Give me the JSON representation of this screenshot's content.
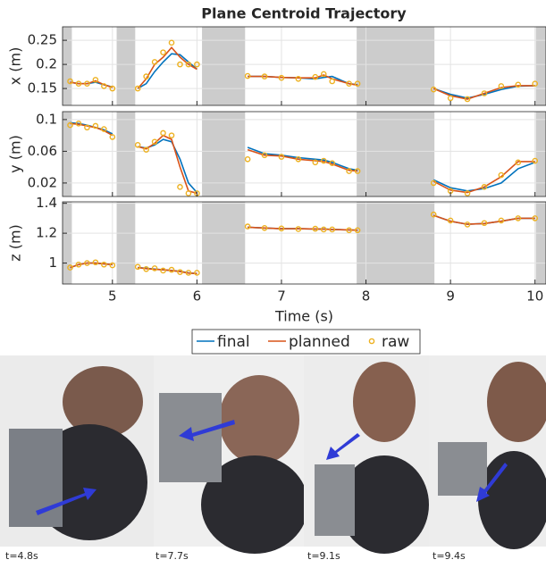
{
  "chart_data": [
    {
      "type": "line",
      "title": "Plane Centroid Trajectory",
      "ylabel": "x (m)",
      "x": [
        4.5,
        4.6,
        4.7,
        4.8,
        4.9,
        5.0,
        5.15,
        5.3,
        5.4,
        5.5,
        5.6,
        5.7,
        5.8,
        5.9,
        6.0,
        6.3,
        6.6,
        6.8,
        7.0,
        7.2,
        7.4,
        7.5,
        7.6,
        7.8,
        7.9,
        8.3,
        8.8,
        9.0,
        9.2,
        9.4,
        9.6,
        9.8,
        10.0
      ],
      "series": [
        {
          "name": "final",
          "color": "#0072bd",
          "style": "line",
          "values": [
            0.163,
            0.16,
            0.16,
            0.163,
            0.158,
            0.153,
            null,
            0.15,
            0.16,
            0.185,
            0.205,
            0.222,
            0.22,
            0.205,
            0.19,
            null,
            0.175,
            0.175,
            0.173,
            0.172,
            0.17,
            0.173,
            0.175,
            0.16,
            0.158,
            null,
            0.15,
            0.138,
            0.13,
            0.138,
            0.148,
            0.155,
            0.156
          ]
        },
        {
          "name": "planned",
          "color": "#d95319",
          "style": "line",
          "values": [
            0.163,
            0.16,
            0.16,
            0.166,
            0.158,
            0.152,
            null,
            0.15,
            0.17,
            0.2,
            0.215,
            0.235,
            0.215,
            0.2,
            0.19,
            null,
            0.175,
            0.175,
            0.173,
            0.172,
            0.172,
            0.178,
            0.17,
            0.16,
            0.157,
            null,
            0.15,
            0.135,
            0.128,
            0.14,
            0.152,
            0.156,
            0.156
          ]
        },
        {
          "name": "raw",
          "color": "#edb120",
          "style": "marker",
          "values": [
            0.165,
            0.16,
            0.16,
            0.168,
            0.155,
            0.15,
            null,
            0.15,
            0.175,
            0.205,
            0.225,
            0.245,
            0.2,
            0.2,
            0.2,
            null,
            0.176,
            0.175,
            0.172,
            0.17,
            0.174,
            0.18,
            0.165,
            0.16,
            0.16,
            null,
            0.148,
            0.13,
            0.128,
            0.14,
            0.155,
            0.158,
            0.16
          ]
        }
      ],
      "shaded": [
        [
          4.41,
          4.52
        ],
        [
          5.05,
          5.27
        ],
        [
          6.06,
          6.57
        ],
        [
          7.89,
          8.81
        ],
        [
          10.01,
          10.13
        ]
      ],
      "xlim": [
        4.41,
        10.13
      ],
      "xticks": [
        5,
        6,
        7,
        8,
        9,
        10
      ],
      "ylim": [
        0.115,
        0.278
      ],
      "yticks": [
        0.15,
        0.2,
        0.25
      ],
      "grid": true
    },
    {
      "type": "line",
      "ylabel": "y (m)",
      "x": [
        4.5,
        4.6,
        4.7,
        4.8,
        4.9,
        5.0,
        5.15,
        5.3,
        5.4,
        5.5,
        5.6,
        5.7,
        5.8,
        5.9,
        6.0,
        6.3,
        6.6,
        6.8,
        7.0,
        7.2,
        7.4,
        7.5,
        7.6,
        7.8,
        7.9,
        8.3,
        8.8,
        9.0,
        9.2,
        9.4,
        9.6,
        9.8,
        10.0
      ],
      "series": [
        {
          "name": "final",
          "color": "#0072bd",
          "style": "line",
          "values": [
            0.096,
            0.095,
            0.093,
            0.09,
            0.087,
            0.082,
            null,
            0.066,
            0.064,
            0.068,
            0.075,
            0.072,
            0.05,
            0.02,
            0.008,
            null,
            0.065,
            0.057,
            0.055,
            0.052,
            0.05,
            0.049,
            0.046,
            0.038,
            0.036,
            null,
            0.024,
            0.014,
            0.01,
            0.013,
            0.02,
            0.038,
            0.046
          ]
        },
        {
          "name": "planned",
          "color": "#d95319",
          "style": "line",
          "values": [
            0.095,
            0.094,
            0.092,
            0.09,
            0.086,
            0.08,
            null,
            0.066,
            0.063,
            0.07,
            0.08,
            0.075,
            0.04,
            0.01,
            0.007,
            null,
            0.062,
            0.055,
            0.054,
            0.05,
            0.048,
            0.047,
            0.044,
            0.036,
            0.035,
            null,
            0.022,
            0.011,
            0.008,
            0.015,
            0.028,
            0.047,
            0.047
          ]
        },
        {
          "name": "raw",
          "color": "#edb120",
          "style": "marker",
          "values": [
            0.093,
            0.095,
            0.09,
            0.092,
            0.088,
            0.078,
            null,
            0.068,
            0.062,
            0.072,
            0.083,
            0.08,
            0.015,
            0.007,
            0.007,
            null,
            0.05,
            0.055,
            0.053,
            0.05,
            0.046,
            0.048,
            0.045,
            0.035,
            0.035,
            null,
            0.02,
            0.01,
            0.007,
            0.015,
            0.03,
            0.046,
            0.048
          ]
        }
      ],
      "shaded": [
        [
          4.41,
          4.52
        ],
        [
          5.05,
          5.27
        ],
        [
          6.06,
          6.57
        ],
        [
          7.89,
          8.81
        ],
        [
          10.01,
          10.13
        ]
      ],
      "xlim": [
        4.41,
        10.13
      ],
      "xticks": [
        5,
        6,
        7,
        8,
        9,
        10
      ],
      "ylim": [
        0.003,
        0.11
      ],
      "yticks": [
        0.02,
        0.06,
        0.1
      ],
      "grid": true
    },
    {
      "type": "line",
      "ylabel": "z (m)",
      "xlabel": "Time (s)",
      "x": [
        4.5,
        4.6,
        4.7,
        4.8,
        4.9,
        5.0,
        5.15,
        5.3,
        5.4,
        5.5,
        5.6,
        5.7,
        5.8,
        5.9,
        6.0,
        6.3,
        6.6,
        6.8,
        7.0,
        7.2,
        7.4,
        7.5,
        7.6,
        7.8,
        7.9,
        8.3,
        8.8,
        9.0,
        9.2,
        9.4,
        9.6,
        9.8,
        10.0
      ],
      "series": [
        {
          "name": "final",
          "color": "#0072bd",
          "style": "line",
          "values": [
            0.97,
            0.99,
            1.0,
            1.0,
            0.995,
            0.99,
            null,
            0.97,
            0.965,
            0.96,
            0.955,
            0.95,
            0.945,
            0.935,
            0.93,
            null,
            1.24,
            1.235,
            1.23,
            1.23,
            1.228,
            1.228,
            1.225,
            1.222,
            1.22,
            null,
            1.32,
            1.28,
            1.26,
            1.265,
            1.28,
            1.3,
            1.3
          ]
        },
        {
          "name": "planned",
          "color": "#d95319",
          "style": "line",
          "values": [
            0.97,
            0.99,
            1.0,
            1.0,
            0.995,
            0.99,
            null,
            0.97,
            0.963,
            0.958,
            0.955,
            0.95,
            0.943,
            0.933,
            0.93,
            null,
            1.24,
            1.235,
            1.23,
            1.23,
            1.228,
            1.227,
            1.225,
            1.222,
            1.22,
            null,
            1.32,
            1.28,
            1.26,
            1.265,
            1.28,
            1.3,
            1.3
          ]
        },
        {
          "name": "raw",
          "color": "#edb120",
          "style": "marker",
          "values": [
            0.97,
            0.99,
            1.0,
            1.005,
            0.99,
            0.985,
            null,
            0.975,
            0.96,
            0.965,
            0.95,
            0.955,
            0.94,
            0.935,
            0.935,
            null,
            1.245,
            1.235,
            1.232,
            1.228,
            1.23,
            1.225,
            1.225,
            1.22,
            1.22,
            null,
            1.325,
            1.285,
            1.258,
            1.268,
            1.285,
            1.3,
            1.3
          ]
        }
      ],
      "shaded": [
        [
          4.41,
          4.52
        ],
        [
          5.05,
          5.27
        ],
        [
          6.06,
          6.57
        ],
        [
          7.89,
          8.81
        ],
        [
          10.01,
          10.13
        ]
      ],
      "xlim": [
        4.41,
        10.13
      ],
      "xticks": [
        5,
        6,
        7,
        8,
        9,
        10
      ],
      "ylim": [
        0.86,
        1.41
      ],
      "yticks": [
        1,
        1.2,
        1.4
      ],
      "grid": true
    }
  ],
  "panels": [
    {
      "caption": "t=4.8s"
    },
    {
      "caption": "t=7.7s"
    },
    {
      "caption": "t=9.1s"
    },
    {
      "caption": "t=9.4s"
    }
  ]
}
